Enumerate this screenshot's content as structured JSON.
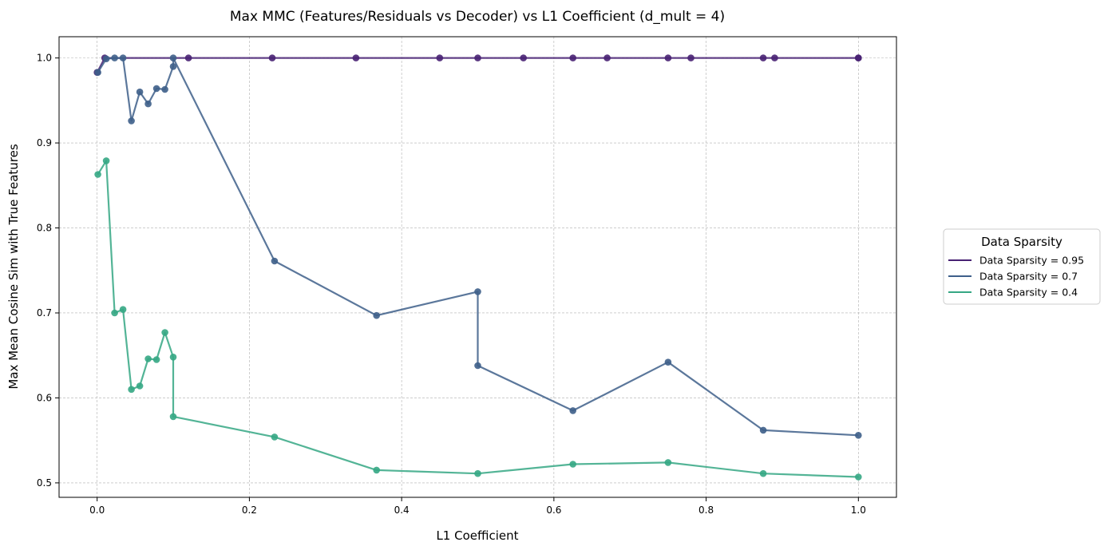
{
  "chart_data": {
    "type": "line",
    "title": "Max MMC (Features/Residuals vs Decoder) vs L1 Coefficient (d_mult = 4)",
    "xlabel": "L1 Coefficient",
    "ylabel": "Max Mean Cosine Sim with True Features",
    "xlim": [
      -0.05,
      1.05
    ],
    "ylim": [
      0.483,
      1.025
    ],
    "xticks": [
      0.0,
      0.2,
      0.4,
      0.6,
      0.8,
      1.0
    ],
    "xtick_labels": [
      "0.0",
      "0.2",
      "0.4",
      "0.6",
      "0.8",
      "1.0"
    ],
    "yticks": [
      0.5,
      0.6,
      0.7,
      0.8,
      0.9,
      1.0
    ],
    "ytick_labels": [
      "0.5",
      "0.6",
      "0.7",
      "0.8",
      "0.9",
      "1.0"
    ],
    "grid": true,
    "legend": {
      "title": "Data Sparsity",
      "placement": "outside-right",
      "entries": [
        "Data Sparsity = 0.95",
        "Data Sparsity = 0.7",
        "Data Sparsity = 0.4"
      ]
    },
    "series": [
      {
        "name": "Data Sparsity = 0.95",
        "color": "#482173",
        "x": [
          0.0,
          0.01,
          0.12,
          0.23,
          0.34,
          0.45,
          0.5,
          0.56,
          0.625,
          0.67,
          0.75,
          0.78,
          0.875,
          0.89,
          1.0,
          1.0
        ],
        "y": [
          0.983,
          1.0,
          1.0,
          1.0,
          1.0,
          1.0,
          1.0,
          1.0,
          1.0,
          1.0,
          1.0,
          1.0,
          1.0,
          1.0,
          1.0,
          1.0
        ]
      },
      {
        "name": "Data Sparsity = 0.7",
        "color": "#3e5f8a",
        "x": [
          0.001,
          0.012,
          0.023,
          0.034,
          0.045,
          0.056,
          0.067,
          0.078,
          0.089,
          0.1,
          0.1,
          0.233,
          0.367,
          0.5,
          0.5,
          0.625,
          0.75,
          0.875,
          1.0
        ],
        "y": [
          0.983,
          0.999,
          1.0,
          1.0,
          0.926,
          0.96,
          0.946,
          0.964,
          0.963,
          0.99,
          1.0,
          0.761,
          0.697,
          0.725,
          0.638,
          0.585,
          0.642,
          0.562,
          0.556
        ]
      },
      {
        "name": "Data Sparsity = 0.4",
        "color": "#35a784",
        "x": [
          0.001,
          0.012,
          0.023,
          0.034,
          0.045,
          0.056,
          0.067,
          0.078,
          0.089,
          0.1,
          0.1,
          0.233,
          0.367,
          0.5,
          0.625,
          0.75,
          0.875,
          1.0
        ],
        "y": [
          0.863,
          0.879,
          0.7,
          0.704,
          0.61,
          0.614,
          0.646,
          0.645,
          0.677,
          0.648,
          0.578,
          0.554,
          0.515,
          0.511,
          0.522,
          0.524,
          0.511,
          0.507
        ]
      }
    ]
  }
}
